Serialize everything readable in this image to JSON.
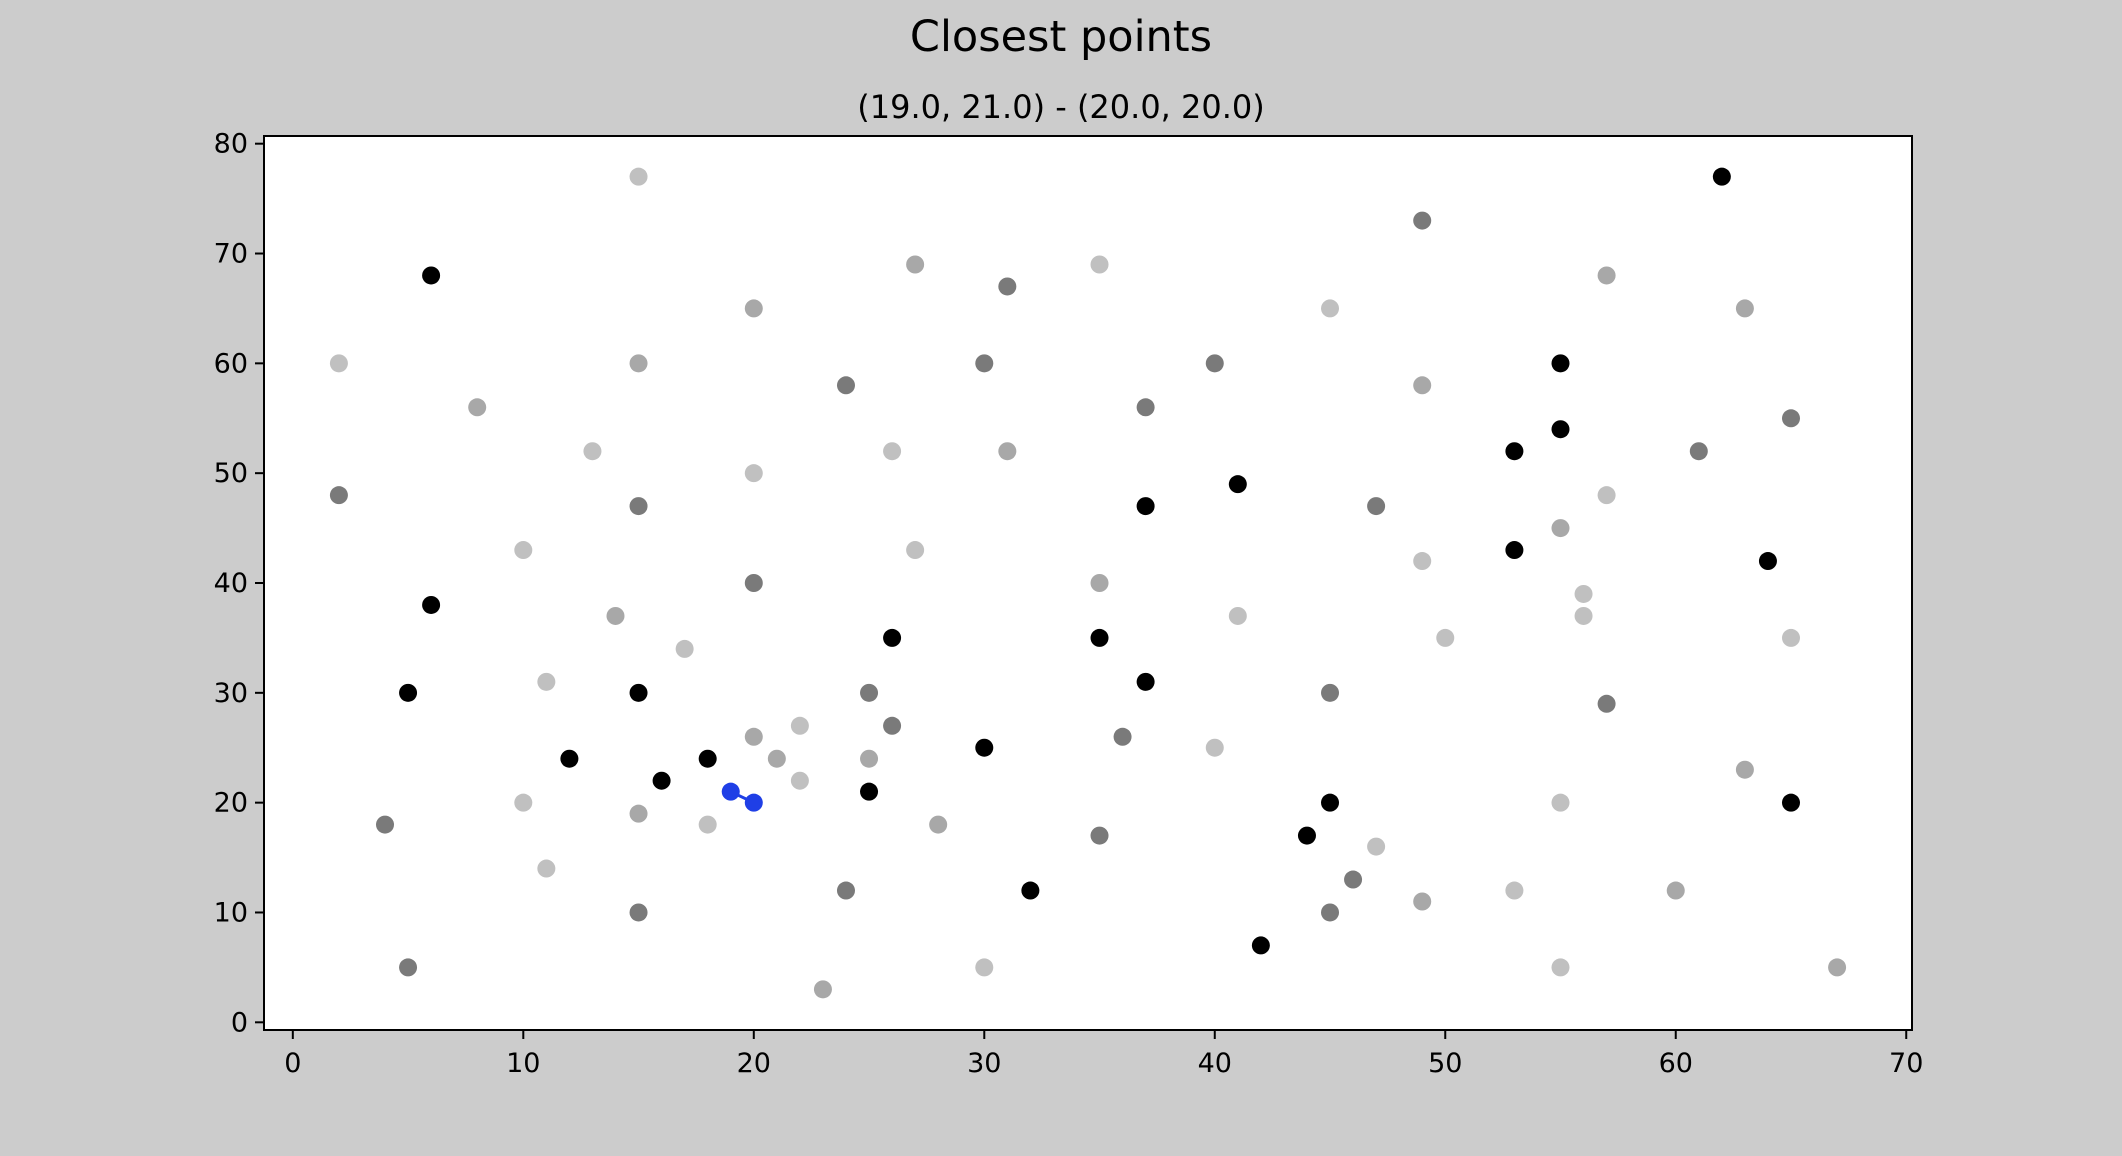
{
  "chart_data": {
    "type": "scatter",
    "title": "Closest points",
    "subtitle": "(19.0, 21.0) - (20.0, 20.0)",
    "xlabel": "",
    "ylabel": "",
    "xlim": [
      -1.25,
      70.25
    ],
    "ylim": [
      -0.7,
      80.7
    ],
    "xticks": [
      0,
      10,
      20,
      30,
      40,
      50,
      60,
      70
    ],
    "yticks": [
      0,
      10,
      20,
      30,
      40,
      50,
      60,
      70,
      80
    ],
    "grid": false,
    "point_colors": {
      "black": "#000000",
      "dark": "#7a7a7a",
      "mid": "#a8a8a8",
      "light": "#c0c0c0",
      "highlight": "#1f3fe6"
    },
    "points": [
      {
        "x": 15,
        "y": 77,
        "c": "light"
      },
      {
        "x": 62,
        "y": 77,
        "c": "black"
      },
      {
        "x": 49,
        "y": 73,
        "c": "dark"
      },
      {
        "x": 27,
        "y": 69,
        "c": "mid"
      },
      {
        "x": 35,
        "y": 69,
        "c": "light"
      },
      {
        "x": 6,
        "y": 68,
        "c": "black"
      },
      {
        "x": 57,
        "y": 68,
        "c": "mid"
      },
      {
        "x": 31,
        "y": 67,
        "c": "dark"
      },
      {
        "x": 20,
        "y": 65,
        "c": "mid"
      },
      {
        "x": 45,
        "y": 65,
        "c": "light"
      },
      {
        "x": 63,
        "y": 65,
        "c": "mid"
      },
      {
        "x": 2,
        "y": 60,
        "c": "light"
      },
      {
        "x": 15,
        "y": 60,
        "c": "mid"
      },
      {
        "x": 30,
        "y": 60,
        "c": "dark"
      },
      {
        "x": 40,
        "y": 60,
        "c": "dark"
      },
      {
        "x": 55,
        "y": 60,
        "c": "black"
      },
      {
        "x": 24,
        "y": 58,
        "c": "dark"
      },
      {
        "x": 49,
        "y": 58,
        "c": "mid"
      },
      {
        "x": 8,
        "y": 56,
        "c": "mid"
      },
      {
        "x": 37,
        "y": 56,
        "c": "dark"
      },
      {
        "x": 65,
        "y": 55,
        "c": "dark"
      },
      {
        "x": 55,
        "y": 54,
        "c": "black"
      },
      {
        "x": 13,
        "y": 52,
        "c": "light"
      },
      {
        "x": 26,
        "y": 52,
        "c": "light"
      },
      {
        "x": 31,
        "y": 52,
        "c": "mid"
      },
      {
        "x": 53,
        "y": 52,
        "c": "black"
      },
      {
        "x": 61,
        "y": 52,
        "c": "dark"
      },
      {
        "x": 20,
        "y": 50,
        "c": "light"
      },
      {
        "x": 41,
        "y": 49,
        "c": "black"
      },
      {
        "x": 2,
        "y": 48,
        "c": "dark"
      },
      {
        "x": 57,
        "y": 48,
        "c": "light"
      },
      {
        "x": 15,
        "y": 47,
        "c": "dark"
      },
      {
        "x": 37,
        "y": 47,
        "c": "black"
      },
      {
        "x": 47,
        "y": 47,
        "c": "dark"
      },
      {
        "x": 55,
        "y": 45,
        "c": "mid"
      },
      {
        "x": 10,
        "y": 43,
        "c": "light"
      },
      {
        "x": 27,
        "y": 43,
        "c": "light"
      },
      {
        "x": 53,
        "y": 43,
        "c": "black"
      },
      {
        "x": 49,
        "y": 42,
        "c": "light"
      },
      {
        "x": 64,
        "y": 42,
        "c": "black"
      },
      {
        "x": 20,
        "y": 40,
        "c": "dark"
      },
      {
        "x": 35,
        "y": 40,
        "c": "mid"
      },
      {
        "x": 56,
        "y": 39,
        "c": "light"
      },
      {
        "x": 6,
        "y": 38,
        "c": "black"
      },
      {
        "x": 14,
        "y": 37,
        "c": "mid"
      },
      {
        "x": 41,
        "y": 37,
        "c": "light"
      },
      {
        "x": 56,
        "y": 37,
        "c": "light"
      },
      {
        "x": 26,
        "y": 35,
        "c": "black"
      },
      {
        "x": 35,
        "y": 35,
        "c": "black"
      },
      {
        "x": 50,
        "y": 35,
        "c": "light"
      },
      {
        "x": 65,
        "y": 35,
        "c": "light"
      },
      {
        "x": 17,
        "y": 34,
        "c": "light"
      },
      {
        "x": 11,
        "y": 31,
        "c": "light"
      },
      {
        "x": 37,
        "y": 31,
        "c": "black"
      },
      {
        "x": 5,
        "y": 30,
        "c": "black"
      },
      {
        "x": 15,
        "y": 30,
        "c": "black"
      },
      {
        "x": 25,
        "y": 30,
        "c": "dark"
      },
      {
        "x": 45,
        "y": 30,
        "c": "dark"
      },
      {
        "x": 57,
        "y": 29,
        "c": "dark"
      },
      {
        "x": 22,
        "y": 27,
        "c": "light"
      },
      {
        "x": 26,
        "y": 27,
        "c": "dark"
      },
      {
        "x": 20,
        "y": 26,
        "c": "mid"
      },
      {
        "x": 36,
        "y": 26,
        "c": "dark"
      },
      {
        "x": 30,
        "y": 25,
        "c": "black"
      },
      {
        "x": 40,
        "y": 25,
        "c": "light"
      },
      {
        "x": 12,
        "y": 24,
        "c": "black"
      },
      {
        "x": 18,
        "y": 24,
        "c": "black"
      },
      {
        "x": 21,
        "y": 24,
        "c": "mid"
      },
      {
        "x": 25,
        "y": 24,
        "c": "mid"
      },
      {
        "x": 63,
        "y": 23,
        "c": "mid"
      },
      {
        "x": 16,
        "y": 22,
        "c": "black"
      },
      {
        "x": 22,
        "y": 22,
        "c": "light"
      },
      {
        "x": 25,
        "y": 21,
        "c": "black"
      },
      {
        "x": 10,
        "y": 20,
        "c": "light"
      },
      {
        "x": 45,
        "y": 20,
        "c": "black"
      },
      {
        "x": 55,
        "y": 20,
        "c": "light"
      },
      {
        "x": 65,
        "y": 20,
        "c": "black"
      },
      {
        "x": 15,
        "y": 19,
        "c": "mid"
      },
      {
        "x": 4,
        "y": 18,
        "c": "dark"
      },
      {
        "x": 18,
        "y": 18,
        "c": "light"
      },
      {
        "x": 28,
        "y": 18,
        "c": "mid"
      },
      {
        "x": 35,
        "y": 17,
        "c": "dark"
      },
      {
        "x": 44,
        "y": 17,
        "c": "black"
      },
      {
        "x": 47,
        "y": 16,
        "c": "light"
      },
      {
        "x": 11,
        "y": 14,
        "c": "light"
      },
      {
        "x": 46,
        "y": 13,
        "c": "dark"
      },
      {
        "x": 24,
        "y": 12,
        "c": "dark"
      },
      {
        "x": 32,
        "y": 12,
        "c": "black"
      },
      {
        "x": 53,
        "y": 12,
        "c": "light"
      },
      {
        "x": 60,
        "y": 12,
        "c": "mid"
      },
      {
        "x": 49,
        "y": 11,
        "c": "mid"
      },
      {
        "x": 15,
        "y": 10,
        "c": "dark"
      },
      {
        "x": 45,
        "y": 10,
        "c": "dark"
      },
      {
        "x": 42,
        "y": 7,
        "c": "black"
      },
      {
        "x": 5,
        "y": 5,
        "c": "dark"
      },
      {
        "x": 30,
        "y": 5,
        "c": "light"
      },
      {
        "x": 55,
        "y": 5,
        "c": "light"
      },
      {
        "x": 67,
        "y": 5,
        "c": "mid"
      },
      {
        "x": 23,
        "y": 3,
        "c": "mid"
      }
    ],
    "closest_pair": [
      {
        "x": 19,
        "y": 21
      },
      {
        "x": 20,
        "y": 20
      }
    ]
  }
}
